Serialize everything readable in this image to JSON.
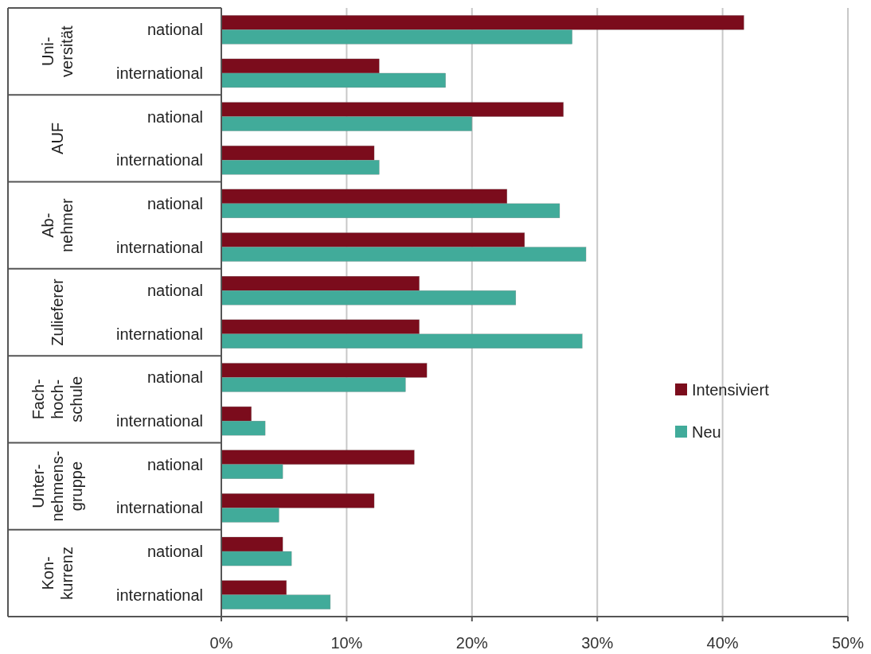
{
  "chart_data": {
    "type": "bar",
    "orientation": "horizontal",
    "categories": [
      "national",
      "international",
      "national",
      "international",
      "national",
      "international",
      "national",
      "international",
      "national",
      "international",
      "national",
      "international",
      "national",
      "international"
    ],
    "series": [
      {
        "name": "Intensiviert",
        "color": "#7b0c1c",
        "values": [
          41.7,
          12.6,
          27.3,
          12.2,
          22.8,
          24.2,
          15.8,
          15.8,
          16.4,
          2.4,
          15.4,
          12.2,
          4.9,
          5.2
        ]
      },
      {
        "name": "Neu",
        "color": "#41ab9a",
        "values": [
          28.0,
          17.9,
          20.0,
          12.6,
          27.0,
          29.1,
          23.5,
          28.8,
          14.7,
          3.5,
          4.9,
          4.6,
          5.6,
          8.7
        ]
      }
    ],
    "annotations": [
      "Uni-\nversität",
      "AUF",
      "Ab-\nnehmer",
      "Zulieferer",
      "Fach-\nhoch-\nschule",
      "Unter-\nnehmens-\ngruppe",
      "Kon-\nkurrenz"
    ],
    "xlim": [
      0,
      50
    ],
    "xticks": [
      {
        "value": 0,
        "label": "0%"
      },
      {
        "value": 10,
        "label": "10%"
      },
      {
        "value": 20,
        "label": "20%"
      },
      {
        "value": 30,
        "label": "30%"
      },
      {
        "value": 40,
        "label": "40%"
      },
      {
        "value": 50,
        "label": "50%"
      }
    ],
    "grid": "x",
    "legend": "right"
  }
}
